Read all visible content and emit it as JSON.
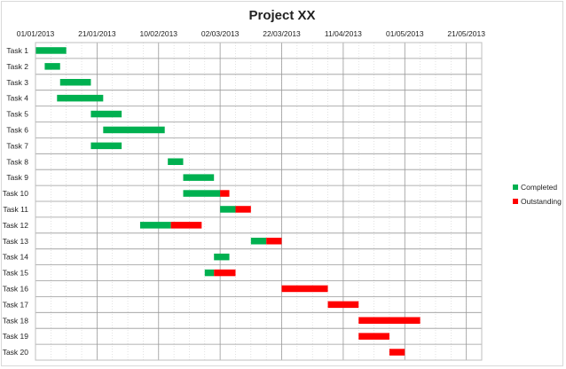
{
  "chart_data": {
    "type": "bar",
    "orientation": "horizontal-gantt",
    "title": "Project XX",
    "xlabel": "",
    "ylabel": "",
    "x_ticks": [
      "01/01/2013",
      "21/01/2013",
      "10/02/2013",
      "02/03/2013",
      "22/03/2013",
      "11/04/2013",
      "01/05/2013",
      "21/05/2013"
    ],
    "xlim": [
      "2013-01-01",
      "2013-05-26"
    ],
    "x_axis_position": "top",
    "grid": true,
    "legend_position": "right",
    "categories": [
      "Task 1",
      "Task 2",
      "Task 3",
      "Task 4",
      "Task 5",
      "Task 6",
      "Task 7",
      "Task 8",
      "Task 9",
      "Task 10",
      "Task 11",
      "Task 12",
      "Task 13",
      "Task 14",
      "Task 15",
      "Task 16",
      "Task 17",
      "Task 18",
      "Task 19",
      "Task 20"
    ],
    "series": [
      {
        "name": "Completed",
        "color": "#00b050",
        "start": [
          "2013-01-01",
          "2013-01-04",
          "2013-01-09",
          "2013-01-08",
          "2013-01-19",
          "2013-01-23",
          "2013-01-19",
          "2013-02-13",
          "2013-02-18",
          "2013-02-18",
          "2013-03-02",
          "2013-02-04",
          "2013-03-12",
          "2013-02-28",
          "2013-02-25",
          null,
          null,
          null,
          null,
          null
        ],
        "end": [
          "2013-01-11",
          "2013-01-09",
          "2013-01-19",
          "2013-01-23",
          "2013-01-29",
          "2013-02-12",
          "2013-01-29",
          "2013-02-18",
          "2013-02-28",
          "2013-03-02",
          "2013-03-07",
          "2013-02-14",
          "2013-03-17",
          "2013-03-05",
          "2013-02-28",
          null,
          null,
          null,
          null,
          null
        ]
      },
      {
        "name": "Outstanding",
        "color": "#ff0000",
        "start": [
          null,
          null,
          null,
          null,
          null,
          null,
          null,
          null,
          null,
          "2013-03-02",
          "2013-03-07",
          "2013-02-14",
          "2013-03-17",
          null,
          "2013-02-28",
          "2013-03-22",
          "2013-04-06",
          "2013-04-16",
          "2013-04-16",
          "2013-04-26"
        ],
        "end": [
          null,
          null,
          null,
          null,
          null,
          null,
          null,
          null,
          null,
          "2013-03-05",
          "2013-03-12",
          "2013-02-24",
          "2013-03-22",
          null,
          "2013-03-07",
          "2013-04-06",
          "2013-04-16",
          "2013-05-06",
          "2013-04-26",
          "2013-05-01"
        ]
      }
    ]
  }
}
